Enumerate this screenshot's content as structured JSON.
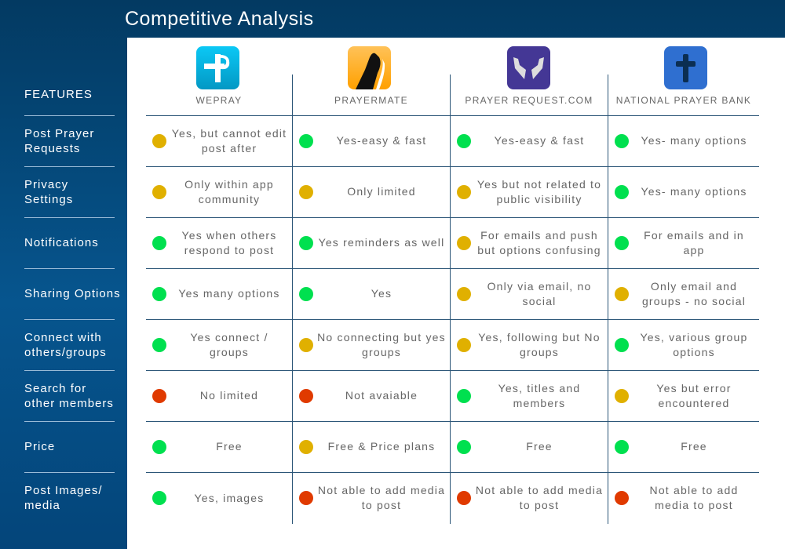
{
  "title": "Competitive Analysis",
  "features_header": "FEATURES",
  "features": [
    "Post Prayer Requests",
    "Privacy Settings",
    "Notifications",
    "Sharing Options",
    "Connect with others/groups",
    "Search for other members",
    "Price",
    "Post Images/ media"
  ],
  "colors": {
    "green": "#00e04f",
    "yellow": "#e0b000",
    "red": "#e03a00"
  },
  "apps": [
    {
      "name": "WEPRAY",
      "icon": "wepray-logo-icon"
    },
    {
      "name": "PRAYERMATE",
      "icon": "praying-hands-icon"
    },
    {
      "name": "PRAYER REQUEST.COM",
      "icon": "open-hands-icon"
    },
    {
      "name": "NATIONAL PRAYER BANK",
      "icon": "cross-icon"
    }
  ],
  "rows": [
    [
      {
        "s": "yellow",
        "t": "Yes, but cannot edit post after"
      },
      {
        "s": "green",
        "t": "Yes-easy & fast"
      },
      {
        "s": "green",
        "t": "Yes-easy & fast"
      },
      {
        "s": "green",
        "t": "Yes- many options"
      }
    ],
    [
      {
        "s": "yellow",
        "t": "Only within app community"
      },
      {
        "s": "yellow",
        "t": "Only limited"
      },
      {
        "s": "yellow",
        "t": "Yes but not related to public visibility"
      },
      {
        "s": "green",
        "t": "Yes- many options"
      }
    ],
    [
      {
        "s": "green",
        "t": "Yes when others respond to post"
      },
      {
        "s": "green",
        "t": "Yes reminders as well"
      },
      {
        "s": "yellow",
        "t": "For emails and push but options confusing"
      },
      {
        "s": "green",
        "t": "For emails and in app"
      }
    ],
    [
      {
        "s": "green",
        "t": "Yes many options"
      },
      {
        "s": "green",
        "t": "Yes"
      },
      {
        "s": "yellow",
        "t": "Only via email, no social"
      },
      {
        "s": "yellow",
        "t": "Only email and groups - no social"
      }
    ],
    [
      {
        "s": "green",
        "t": "Yes connect / groups"
      },
      {
        "s": "yellow",
        "t": "No connecting but yes groups"
      },
      {
        "s": "yellow",
        "t": "Yes, following but No groups"
      },
      {
        "s": "green",
        "t": "Yes, various group options"
      }
    ],
    [
      {
        "s": "red",
        "t": "No limited"
      },
      {
        "s": "red",
        "t": "Not avaiable"
      },
      {
        "s": "green",
        "t": "Yes, titles and members"
      },
      {
        "s": "yellow",
        "t": "Yes but error encountered"
      }
    ],
    [
      {
        "s": "green",
        "t": "Free"
      },
      {
        "s": "yellow",
        "t": "Free & Price plans"
      },
      {
        "s": "green",
        "t": "Free"
      },
      {
        "s": "green",
        "t": "Free"
      }
    ],
    [
      {
        "s": "green",
        "t": "Yes, images"
      },
      {
        "s": "red",
        "t": "Not able to add media to post"
      },
      {
        "s": "red",
        "t": "Not able to add media to post"
      },
      {
        "s": "red",
        "t": "Not able to add media to post"
      }
    ]
  ]
}
